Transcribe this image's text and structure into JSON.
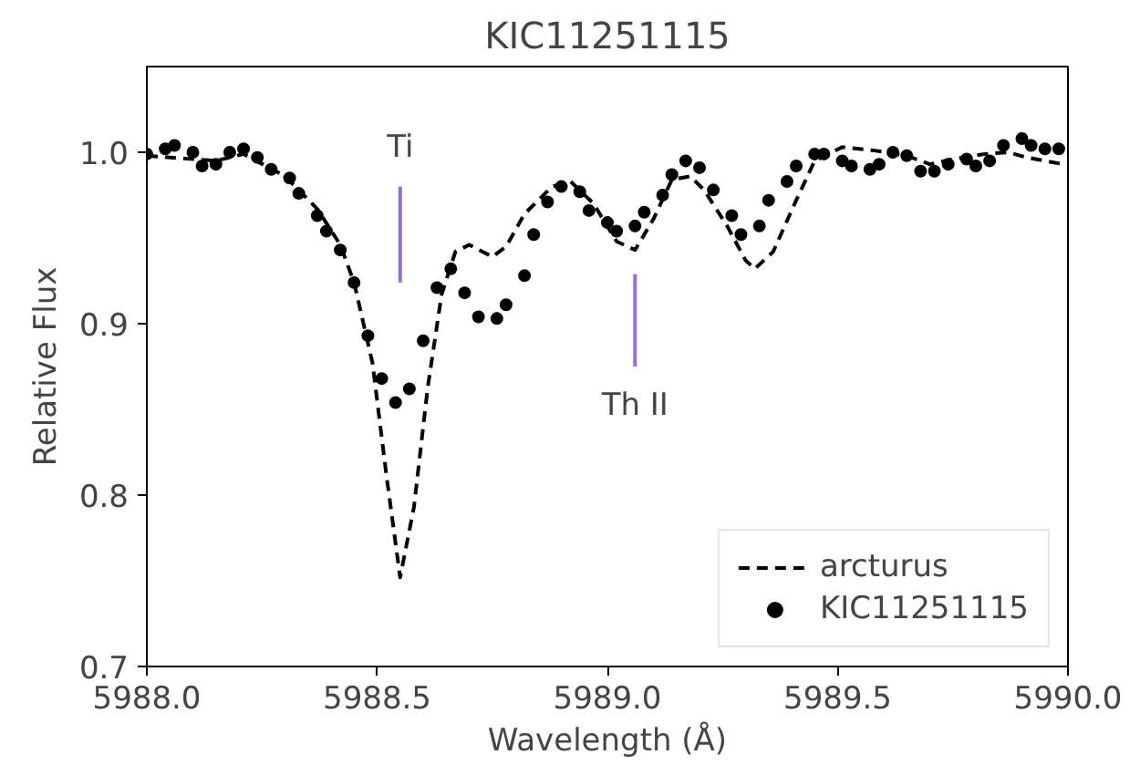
{
  "chart_data": {
    "type": "line",
    "title": "KIC11251115",
    "xlabel": "Wavelength (Å)",
    "ylabel": "Relative Flux",
    "xlim": [
      5988.0,
      5990.0
    ],
    "ylim": [
      0.7,
      1.05
    ],
    "xticks": [
      {
        "value": 5988.0,
        "label": "5988.0"
      },
      {
        "value": 5988.5,
        "label": "5988.5"
      },
      {
        "value": 5989.0,
        "label": "5989.0"
      },
      {
        "value": 5989.5,
        "label": "5989.5"
      },
      {
        "value": 5990.0,
        "label": "5990.0"
      }
    ],
    "yticks": [
      0.7,
      0.8,
      0.9,
      {
        "value": 1.0,
        "label": "1.0"
      }
    ],
    "grid": false,
    "legend": "bottom right",
    "series": [
      {
        "name": "arcturus",
        "line_style": "dashed",
        "color": "#000000",
        "x": [
          5988.0,
          5988.15,
          5988.21,
          5988.3,
          5988.37,
          5988.42,
          5988.45,
          5988.49,
          5988.52,
          5988.55,
          5988.58,
          5988.61,
          5988.64,
          5988.67,
          5988.7,
          5988.75,
          5988.78,
          5988.82,
          5988.88,
          5988.92,
          5988.97,
          5989.02,
          5989.06,
          5989.1,
          5989.14,
          5989.18,
          5989.21,
          5989.26,
          5989.3,
          5989.32,
          5989.36,
          5989.41,
          5989.45,
          5989.51,
          5989.58,
          5989.65,
          5989.7,
          5989.75,
          5989.82,
          5989.87,
          5989.91,
          5989.99
        ],
        "values": [
          0.998,
          0.995,
          0.999,
          0.986,
          0.967,
          0.946,
          0.924,
          0.877,
          0.812,
          0.752,
          0.793,
          0.863,
          0.917,
          0.942,
          0.946,
          0.939,
          0.945,
          0.964,
          0.98,
          0.983,
          0.97,
          0.948,
          0.943,
          0.961,
          0.984,
          0.986,
          0.978,
          0.957,
          0.937,
          0.932,
          0.942,
          0.972,
          0.995,
          1.003,
          1.001,
          0.998,
          0.993,
          0.996,
          0.999,
          1.0,
          0.997,
          0.993
        ]
      },
      {
        "name": "KIC11251115",
        "type": "scatter",
        "marker": "circle",
        "color": "#000000",
        "x": [
          5988.0,
          5988.04,
          5988.06,
          5988.1,
          5988.12,
          5988.15,
          5988.18,
          5988.21,
          5988.24,
          5988.27,
          5988.31,
          5988.33,
          5988.37,
          5988.39,
          5988.42,
          5988.45,
          5988.48,
          5988.51,
          5988.54,
          5988.57,
          5988.6,
          5988.63,
          5988.66,
          5988.69,
          5988.72,
          5988.76,
          5988.78,
          5988.82,
          5988.84,
          5988.87,
          5988.9,
          5988.94,
          5988.96,
          5989.0,
          5989.02,
          5989.06,
          5989.08,
          5989.12,
          5989.14,
          5989.17,
          5989.2,
          5989.23,
          5989.27,
          5989.29,
          5989.33,
          5989.35,
          5989.39,
          5989.41,
          5989.45,
          5989.47,
          5989.51,
          5989.53,
          5989.57,
          5989.59,
          5989.62,
          5989.65,
          5989.68,
          5989.71,
          5989.74,
          5989.78,
          5989.8,
          5989.83,
          5989.86,
          5989.9,
          5989.92,
          5989.95,
          5989.98
        ],
        "values": [
          0.999,
          1.002,
          1.004,
          1.0,
          0.992,
          0.993,
          1.0,
          1.002,
          0.997,
          0.99,
          0.985,
          0.976,
          0.963,
          0.954,
          0.943,
          0.924,
          0.893,
          0.868,
          0.854,
          0.862,
          0.89,
          0.921,
          0.932,
          0.918,
          0.904,
          0.903,
          0.911,
          0.928,
          0.952,
          0.971,
          0.98,
          0.977,
          0.966,
          0.959,
          0.954,
          0.957,
          0.965,
          0.975,
          0.987,
          0.995,
          0.991,
          0.978,
          0.963,
          0.952,
          0.957,
          0.972,
          0.983,
          0.992,
          0.999,
          0.999,
          0.995,
          0.992,
          0.99,
          0.993,
          1.0,
          0.998,
          0.989,
          0.989,
          0.993,
          0.996,
          0.992,
          0.995,
          1.004,
          1.008,
          1.004,
          1.002,
          1.002
        ]
      }
    ],
    "ref_lines": [
      {
        "axis": "x",
        "value": 5988.55,
        "label": "Ti",
        "color": "#9370db"
      },
      {
        "axis": "x",
        "value": 5989.06,
        "label": "Th II",
        "color": "#9370db"
      }
    ]
  }
}
